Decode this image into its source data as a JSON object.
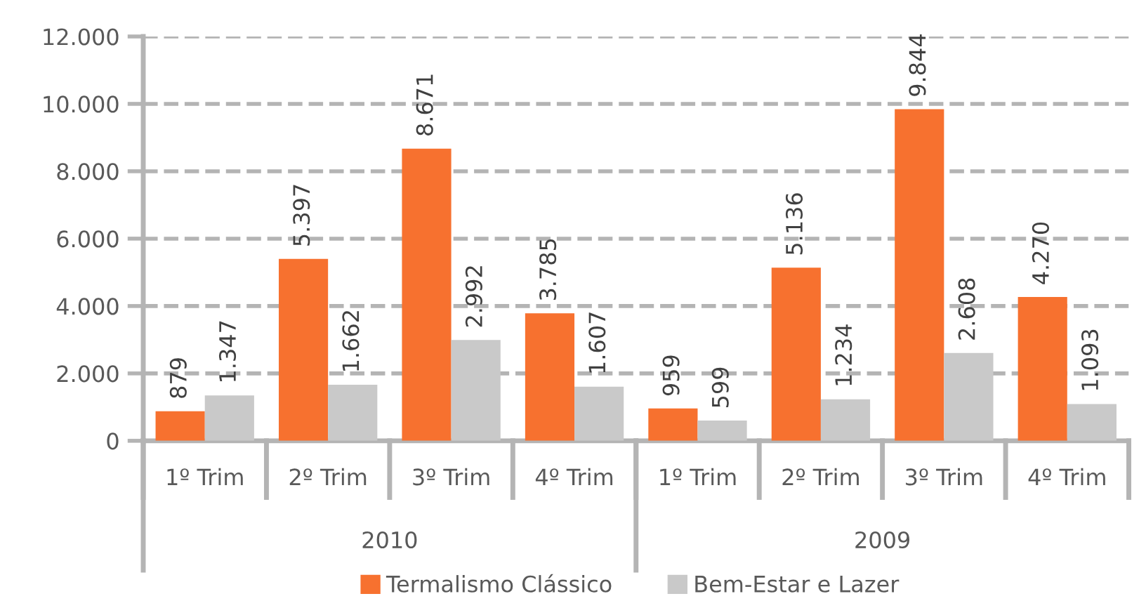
{
  "chart_data": {
    "type": "bar",
    "categories": [
      "1º Trim",
      "2º Trim",
      "3º Trim",
      "4º Trim",
      "1º Trim",
      "2º Trim",
      "3º Trim",
      "4º Trim"
    ],
    "series": [
      {
        "name": "Termalismo Clássico",
        "color": "#f7712f",
        "values": [
          879,
          5397,
          8671,
          3785,
          959,
          5136,
          9844,
          4270
        ],
        "value_labels": [
          "879",
          "5.397",
          "8.671",
          "3.785",
          "959",
          "5.136",
          "9.844",
          "4.270"
        ]
      },
      {
        "name": "Bem-Estar e Lazer",
        "color": "#c9c9c9",
        "values": [
          1347,
          1662,
          2992,
          1607,
          599,
          1234,
          2608,
          1093
        ],
        "value_labels": [
          "1.347",
          "1.662",
          "2.992",
          "1.607",
          "599",
          "1.234",
          "2.608",
          "1.093"
        ]
      }
    ],
    "annotations": [
      "2010",
      "2009"
    ],
    "ylim": [
      0,
      12000
    ],
    "yticks": [
      {
        "value": 0,
        "label": "0"
      },
      {
        "value": 2000,
        "label": "2.000"
      },
      {
        "value": 4000,
        "label": "4.000"
      },
      {
        "value": 6000,
        "label": "6.000"
      },
      {
        "value": 8000,
        "label": "8.000"
      },
      {
        "value": 10000,
        "label": "10.000"
      },
      {
        "value": 12000,
        "label": "12.000"
      }
    ],
    "grid": "y",
    "legend": "bottom"
  }
}
